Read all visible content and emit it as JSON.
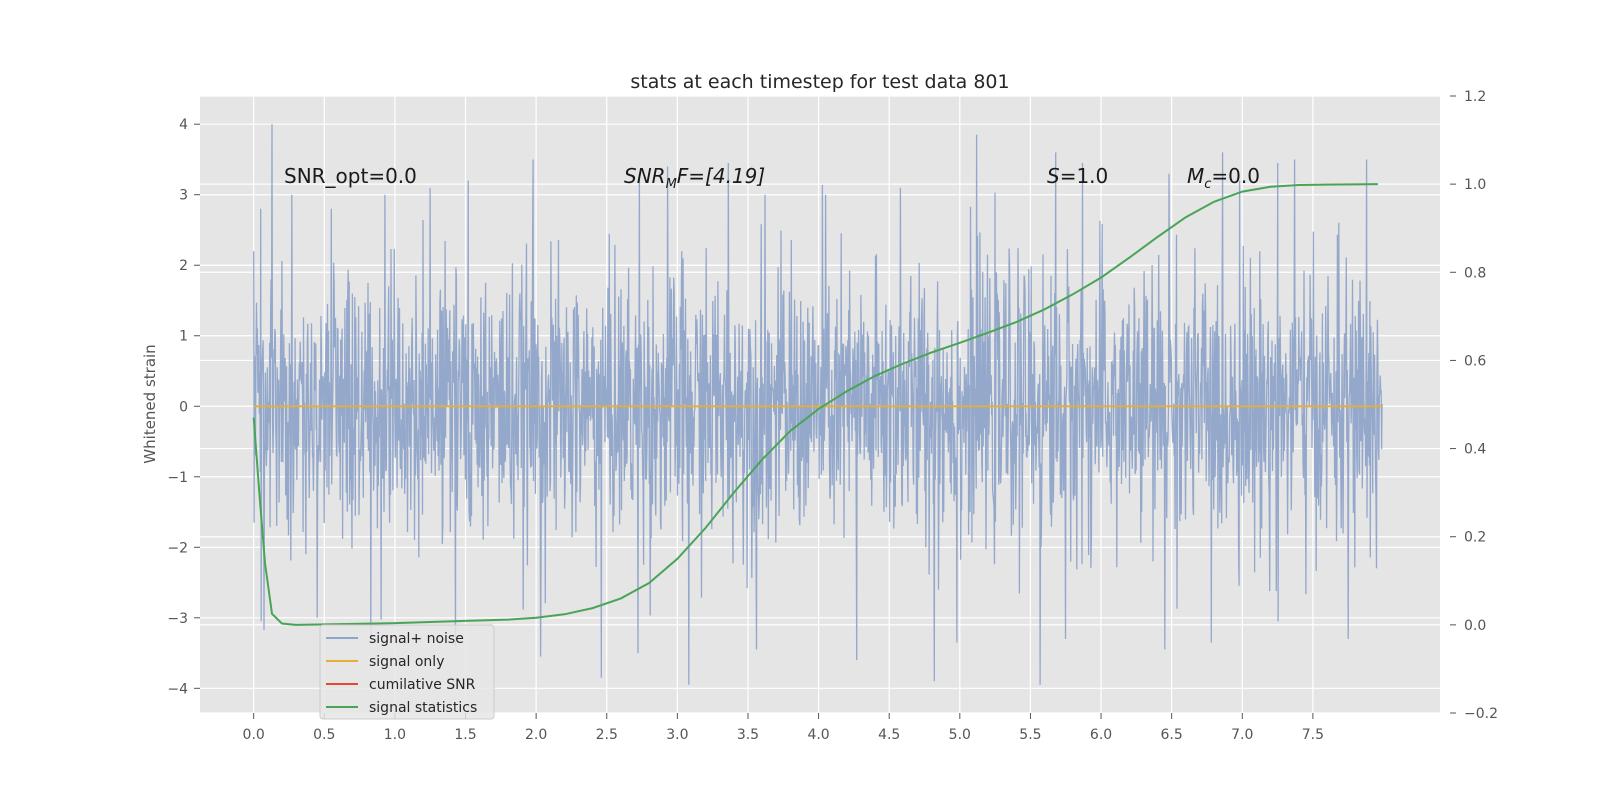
{
  "chart_data": {
    "type": "line",
    "title": "stats at each timestep for test data 801",
    "xlabel": "",
    "ylabel": "Whitened strain",
    "y2label": "",
    "xlim": [
      -0.38,
      8.4
    ],
    "ylim": [
      -4.35,
      4.4
    ],
    "y2lim": [
      -0.2,
      1.2
    ],
    "xticks": [
      "0.0",
      "0.5",
      "1.0",
      "1.5",
      "2.0",
      "2.5",
      "3.0",
      "3.5",
      "4.0",
      "4.5",
      "5.0",
      "5.5",
      "6.0",
      "6.5",
      "7.0",
      "7.5"
    ],
    "yticks": [
      "−4",
      "−3",
      "−2",
      "−1",
      "0",
      "1",
      "2",
      "3",
      "4"
    ],
    "y2ticks": [
      "−0.2",
      "0.0",
      "0.2",
      "0.4",
      "0.6",
      "0.8",
      "1.0",
      "1.2"
    ],
    "grid": true,
    "legend_position": "lower-left",
    "annotations": {
      "snr_opt": "SNR_opt=0.0",
      "snr_mf_main": "SNR",
      "snr_mf_sub": "M",
      "snr_mf_rest": "F=[4.19]",
      "s_main": "S",
      "s_rest": "=1.0",
      "mc_main": "M",
      "mc_sub": "c",
      "mc_rest": "=0.0"
    },
    "noise_envelope": {
      "x_range": [
        0.0,
        7.99
      ],
      "typical_range": [
        -1.8,
        1.8
      ],
      "max_peak": 4.0,
      "min_trough": -3.95
    },
    "series": [
      {
        "name": "signal+ noise",
        "color": "#8fa4c9",
        "axis": "left",
        "peaks": [
          {
            "x": 0.0,
            "y": 2.2
          },
          {
            "x": 0.05,
            "y": 2.8
          },
          {
            "x": 0.13,
            "y": 4.0
          },
          {
            "x": 0.27,
            "y": 3.0
          },
          {
            "x": 0.55,
            "y": 2.8
          },
          {
            "x": 0.93,
            "y": 3.0
          },
          {
            "x": 1.25,
            "y": 3.1
          },
          {
            "x": 1.52,
            "y": 3.2
          },
          {
            "x": 1.98,
            "y": 3.5
          },
          {
            "x": 2.73,
            "y": 3.3
          },
          {
            "x": 2.93,
            "y": 3.4
          },
          {
            "x": 3.36,
            "y": 3.45
          },
          {
            "x": 3.62,
            "y": 3.0
          },
          {
            "x": 4.05,
            "y": 3.0
          },
          {
            "x": 4.58,
            "y": 3.1
          },
          {
            "x": 5.12,
            "y": 3.85
          },
          {
            "x": 5.68,
            "y": 3.6
          },
          {
            "x": 5.87,
            "y": 3.45
          },
          {
            "x": 6.48,
            "y": 3.3
          },
          {
            "x": 6.98,
            "y": 3.2
          },
          {
            "x": 7.25,
            "y": 3.45
          },
          {
            "x": 7.37,
            "y": 3.5
          },
          {
            "x": 7.88,
            "y": 3.5
          }
        ],
        "troughs": [
          {
            "x": 0.0,
            "y": -1.65
          },
          {
            "x": 0.05,
            "y": -3.05
          },
          {
            "x": 0.45,
            "y": -3.0
          },
          {
            "x": 0.83,
            "y": -3.3
          },
          {
            "x": 1.43,
            "y": -3.4
          },
          {
            "x": 2.03,
            "y": -3.55
          },
          {
            "x": 2.46,
            "y": -3.85
          },
          {
            "x": 2.72,
            "y": -3.5
          },
          {
            "x": 3.08,
            "y": -3.95
          },
          {
            "x": 3.56,
            "y": -3.45
          },
          {
            "x": 4.27,
            "y": -3.6
          },
          {
            "x": 4.82,
            "y": -3.9
          },
          {
            "x": 4.98,
            "y": -3.35
          },
          {
            "x": 5.57,
            "y": -3.95
          },
          {
            "x": 5.75,
            "y": -3.3
          },
          {
            "x": 6.45,
            "y": -3.45
          },
          {
            "x": 6.78,
            "y": -3.35
          },
          {
            "x": 7.25,
            "y": -3.05
          },
          {
            "x": 7.75,
            "y": -3.3
          },
          {
            "x": 7.95,
            "y": -2.3
          }
        ]
      },
      {
        "name": "signal only",
        "color": "#e5ae38",
        "axis": "left",
        "x": [
          0.0,
          7.99
        ],
        "y": [
          0.0,
          0.0
        ]
      },
      {
        "name": "cumilative SNR",
        "color": "#e24a33",
        "axis": "left",
        "x": [],
        "y": []
      },
      {
        "name": "signal statistics",
        "color": "#4aa456",
        "axis": "right",
        "x": [
          0.0,
          0.04,
          0.08,
          0.13,
          0.2,
          0.3,
          0.5,
          1.0,
          1.5,
          1.8,
          2.0,
          2.2,
          2.4,
          2.6,
          2.8,
          3.0,
          3.2,
          3.4,
          3.6,
          3.8,
          4.0,
          4.2,
          4.4,
          4.6,
          4.8,
          5.0,
          5.2,
          5.4,
          5.6,
          5.8,
          6.0,
          6.2,
          6.4,
          6.6,
          6.8,
          7.0,
          7.2,
          7.4,
          7.6,
          7.8,
          7.96
        ],
        "y": [
          0.47,
          0.3,
          0.14,
          0.025,
          0.003,
          0.0,
          0.001,
          0.004,
          0.009,
          0.012,
          0.016,
          0.024,
          0.038,
          0.06,
          0.095,
          0.15,
          0.22,
          0.3,
          0.375,
          0.44,
          0.49,
          0.53,
          0.565,
          0.593,
          0.618,
          0.64,
          0.663,
          0.687,
          0.716,
          0.75,
          0.788,
          0.833,
          0.88,
          0.925,
          0.96,
          0.983,
          0.994,
          0.998,
          0.999,
          0.9995,
          1.0
        ]
      }
    ]
  }
}
